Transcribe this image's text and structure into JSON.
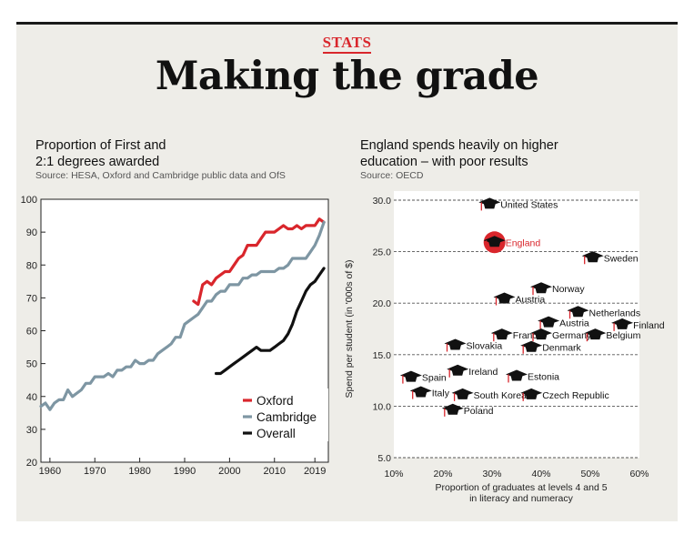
{
  "kicker": "STATS",
  "headline": "Making the grade",
  "chart_data": [
    {
      "type": "line",
      "title_lines": [
        "Proportion of First and",
        "2:1 degrees awarded"
      ],
      "source": "Source: HESA, Oxford and Cambridge public data and OfS",
      "xlabel": "",
      "ylabel": "",
      "xlim": [
        1958,
        2022
      ],
      "ylim": [
        20,
        100
      ],
      "xticks": [
        1960,
        1970,
        1980,
        1990,
        2000,
        2010,
        2019
      ],
      "yticks": [
        20,
        30,
        40,
        50,
        60,
        70,
        80,
        90,
        100
      ],
      "legend_position": "bottom-right",
      "grid": false,
      "series": [
        {
          "name": "Oxford",
          "color": "#d9262c",
          "x": [
            1992,
            1993,
            1994,
            1995,
            1996,
            1997,
            1998,
            1999,
            2000,
            2001,
            2002,
            2003,
            2004,
            2005,
            2006,
            2007,
            2008,
            2009,
            2010,
            2011,
            2012,
            2013,
            2014,
            2015,
            2016,
            2017,
            2018,
            2019,
            2020,
            2021
          ],
          "y": [
            69,
            68,
            74,
            75,
            74,
            76,
            77,
            78,
            78,
            80,
            82,
            83,
            86,
            86,
            86,
            88,
            90,
            90,
            90,
            91,
            92,
            91,
            91,
            92,
            91,
            92,
            92,
            92,
            94,
            93
          ]
        },
        {
          "name": "Cambridge",
          "color": "#7e96a3",
          "x": [
            1958,
            1959,
            1960,
            1961,
            1962,
            1963,
            1964,
            1965,
            1966,
            1967,
            1968,
            1969,
            1970,
            1971,
            1972,
            1973,
            1974,
            1975,
            1976,
            1977,
            1978,
            1979,
            1980,
            1981,
            1982,
            1983,
            1984,
            1985,
            1986,
            1987,
            1988,
            1989,
            1990,
            1991,
            1992,
            1993,
            1994,
            1995,
            1996,
            1997,
            1998,
            1999,
            2000,
            2001,
            2002,
            2003,
            2004,
            2005,
            2006,
            2007,
            2008,
            2009,
            2010,
            2011,
            2012,
            2013,
            2014,
            2015,
            2016,
            2017,
            2018,
            2019,
            2020,
            2021
          ],
          "y": [
            37,
            38,
            36,
            38,
            39,
            39,
            42,
            40,
            41,
            42,
            44,
            44,
            46,
            46,
            46,
            47,
            46,
            48,
            48,
            49,
            49,
            51,
            50,
            50,
            51,
            51,
            53,
            54,
            55,
            56,
            58,
            58,
            62,
            63,
            64,
            65,
            67,
            69,
            69,
            71,
            72,
            72,
            74,
            74,
            74,
            76,
            76,
            77,
            77,
            78,
            78,
            78,
            78,
            79,
            79,
            80,
            82,
            82,
            82,
            82,
            84,
            86,
            89,
            93
          ]
        },
        {
          "name": "Overall",
          "color": "#111111",
          "x": [
            1997,
            1998,
            1999,
            2000,
            2001,
            2002,
            2003,
            2004,
            2005,
            2006,
            2007,
            2008,
            2009,
            2010,
            2011,
            2012,
            2013,
            2014,
            2015,
            2016,
            2017,
            2018,
            2019,
            2020,
            2021
          ],
          "y": [
            47,
            47,
            48,
            49,
            50,
            51,
            52,
            53,
            54,
            55,
            54,
            54,
            54,
            55,
            56,
            57,
            59,
            62,
            66,
            69,
            72,
            74,
            75,
            77,
            79
          ]
        }
      ]
    },
    {
      "type": "scatter",
      "title_lines": [
        "England spends heavily on higher",
        "education – with poor results"
      ],
      "source": "Source: OECD",
      "xlabel_lines": [
        "Proportion of graduates at levels 4 and 5",
        "in literacy and numeracy"
      ],
      "ylabel": "Spend per student (in '000s of $)",
      "xlim": [
        10,
        60
      ],
      "ylim": [
        5,
        30
      ],
      "xticks": [
        "10%",
        "20%",
        "30%",
        "40%",
        "50%",
        "60%"
      ],
      "yticks": [
        "5.0",
        "10.0",
        "15.0",
        "20.0",
        "25.0",
        "30.0"
      ],
      "grid": "horizontal-dashed",
      "highlight_color": "#d9262c",
      "points": [
        {
          "name": "United States",
          "x": 29.5,
          "y": 29.7
        },
        {
          "name": "England",
          "x": 30.5,
          "y": 26.0,
          "highlight": true
        },
        {
          "name": "Sweden",
          "x": 50.5,
          "y": 24.5
        },
        {
          "name": "Norway",
          "x": 40.0,
          "y": 21.5
        },
        {
          "name": "Austria",
          "x": 32.5,
          "y": 20.5
        },
        {
          "name": "Netherlands",
          "x": 47.5,
          "y": 19.2
        },
        {
          "name": "Finland",
          "x": 56.5,
          "y": 18.0
        },
        {
          "name": "Austria",
          "x": 41.5,
          "y": 18.2
        },
        {
          "name": "France",
          "x": 32.0,
          "y": 17.0
        },
        {
          "name": "Germany",
          "x": 40.0,
          "y": 17.0
        },
        {
          "name": "Belgium",
          "x": 51.0,
          "y": 17.0
        },
        {
          "name": "Slovakia",
          "x": 22.5,
          "y": 16.0
        },
        {
          "name": "Denmark",
          "x": 38.0,
          "y": 15.8
        },
        {
          "name": "Spain",
          "x": 13.5,
          "y": 12.9
        },
        {
          "name": "Ireland",
          "x": 23.0,
          "y": 13.5
        },
        {
          "name": "Estonia",
          "x": 35.0,
          "y": 13.0
        },
        {
          "name": "Italy",
          "x": 15.5,
          "y": 11.4
        },
        {
          "name": "South Korea",
          "x": 24.0,
          "y": 11.2
        },
        {
          "name": "Czech Republic",
          "x": 38.0,
          "y": 11.2
        },
        {
          "name": "Poland",
          "x": 22.0,
          "y": 9.7
        }
      ]
    }
  ]
}
